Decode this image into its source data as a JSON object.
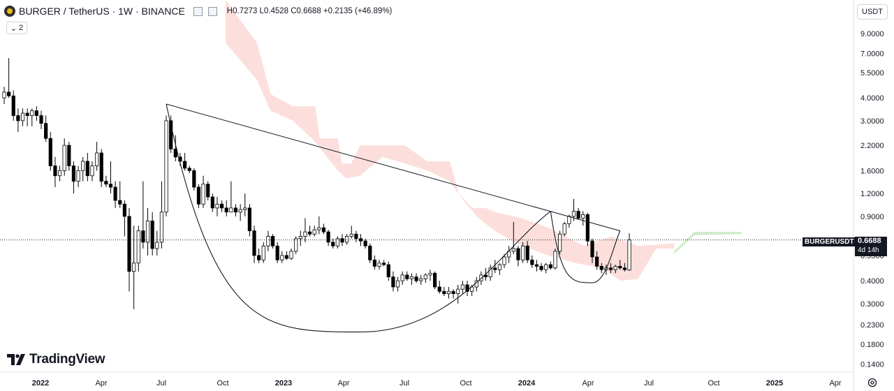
{
  "header": {
    "title": "BURGER / TetherUS · 1W · BINANCE",
    "ohlc": "H0.7273 L0.4528 C0.6688 +0.2135 (+46.89%)",
    "indicator_count": "2",
    "currency": "USDT"
  },
  "price_tag": {
    "symbol": "BURGERUSDT",
    "price": "0.6688",
    "countdown": "4d 14h"
  },
  "logo": {
    "text": "TradingView"
  },
  "colors": {
    "up": "#ffffff",
    "down": "#000000",
    "wick": "#000000",
    "cloud": "#fbd9d6",
    "cloud_future": "#c8e6c0",
    "line": "#131722"
  },
  "icons": [
    "burger-logo-icon",
    "checkbox-icon",
    "chevron-down-icon",
    "tradingview-logo-icon",
    "gear-icon"
  ],
  "chart_data": {
    "type": "candlestick",
    "x_ticks": [
      "2022",
      "Apr",
      "Jul",
      "Oct",
      "2023",
      "Apr",
      "Jul",
      "Oct",
      "2024",
      "Apr",
      "Jul",
      "Oct",
      "2025",
      "Apr"
    ],
    "y_ticks": [
      "9.0000",
      "7.0000",
      "5.5000",
      "4.0000",
      "3.0000",
      "2.2000",
      "1.6000",
      "1.2000",
      "0.9000",
      "0.5500",
      "0.4000",
      "0.3000",
      "0.2300",
      "0.1800",
      "0.1400"
    ],
    "y_scale": "log",
    "ylim": [
      0.13,
      11.5
    ],
    "current_price": 0.6688,
    "candles": [
      [
        4.0,
        4.6,
        3.7,
        4.3
      ],
      [
        4.3,
        6.6,
        4.0,
        4.1
      ],
      [
        4.1,
        4.4,
        3.0,
        3.2
      ],
      [
        3.2,
        3.5,
        2.6,
        3.0
      ],
      [
        3.0,
        3.5,
        2.8,
        3.3
      ],
      [
        3.3,
        3.5,
        2.8,
        3.2
      ],
      [
        3.2,
        3.5,
        2.8,
        3.4
      ],
      [
        3.4,
        3.6,
        3.0,
        3.2
      ],
      [
        3.2,
        3.4,
        2.7,
        2.9
      ],
      [
        2.9,
        3.2,
        2.3,
        2.4
      ],
      [
        2.4,
        2.6,
        1.6,
        1.7
      ],
      [
        1.7,
        1.9,
        1.3,
        1.5
      ],
      [
        1.5,
        1.7,
        1.4,
        1.6
      ],
      [
        1.6,
        2.4,
        1.5,
        2.2
      ],
      [
        2.2,
        2.3,
        1.6,
        1.7
      ],
      [
        1.7,
        1.8,
        1.2,
        1.4
      ],
      [
        1.4,
        1.7,
        1.3,
        1.6
      ],
      [
        1.6,
        1.9,
        1.4,
        1.8
      ],
      [
        1.8,
        2.0,
        1.4,
        1.5
      ],
      [
        1.5,
        1.8,
        1.4,
        1.7
      ],
      [
        1.7,
        2.3,
        1.6,
        2.0
      ],
      [
        2.0,
        2.1,
        1.3,
        1.4
      ],
      [
        1.4,
        1.5,
        1.3,
        1.35
      ],
      [
        1.35,
        1.8,
        1.2,
        1.3
      ],
      [
        1.3,
        1.4,
        1.0,
        1.1
      ],
      [
        1.1,
        1.4,
        1.0,
        1.05
      ],
      [
        1.05,
        1.1,
        0.7,
        0.9
      ],
      [
        0.9,
        1.0,
        0.35,
        0.45
      ],
      [
        0.45,
        0.8,
        0.28,
        0.5
      ],
      [
        0.5,
        0.8,
        0.45,
        0.75
      ],
      [
        0.75,
        1.4,
        0.6,
        0.65
      ],
      [
        0.65,
        1.0,
        0.55,
        0.85
      ],
      [
        0.85,
        0.95,
        0.55,
        0.6
      ],
      [
        0.6,
        0.75,
        0.55,
        0.65
      ],
      [
        0.65,
        1.4,
        0.6,
        0.95
      ],
      [
        0.95,
        3.2,
        0.9,
        3.0
      ],
      [
        3.0,
        3.2,
        2.0,
        2.1
      ],
      [
        2.1,
        2.5,
        1.8,
        1.9
      ],
      [
        1.9,
        2.0,
        1.7,
        1.8
      ],
      [
        1.8,
        2.0,
        1.6,
        1.65
      ],
      [
        1.65,
        1.7,
        1.55,
        1.6
      ],
      [
        1.6,
        1.65,
        1.25,
        1.3
      ],
      [
        1.3,
        1.35,
        1.0,
        1.05
      ],
      [
        1.05,
        1.5,
        1.0,
        1.35
      ],
      [
        1.35,
        1.4,
        1.1,
        1.15
      ],
      [
        1.15,
        1.2,
        0.95,
        1.0
      ],
      [
        1.0,
        1.15,
        0.9,
        1.05
      ],
      [
        1.05,
        1.1,
        0.95,
        1.0
      ],
      [
        1.0,
        1.1,
        0.9,
        0.95
      ],
      [
        0.95,
        1.4,
        0.95,
        1.0
      ],
      [
        1.0,
        1.05,
        0.9,
        0.95
      ],
      [
        0.95,
        1.05,
        0.85,
        0.98
      ],
      [
        0.98,
        1.2,
        0.9,
        1.0
      ],
      [
        1.0,
        1.05,
        0.7,
        0.75
      ],
      [
        0.75,
        0.8,
        0.5,
        0.55
      ],
      [
        0.55,
        0.6,
        0.5,
        0.52
      ],
      [
        0.52,
        0.65,
        0.5,
        0.62
      ],
      [
        0.62,
        0.75,
        0.58,
        0.7
      ],
      [
        0.7,
        0.72,
        0.6,
        0.62
      ],
      [
        0.62,
        0.65,
        0.5,
        0.52
      ],
      [
        0.52,
        0.58,
        0.5,
        0.55
      ],
      [
        0.55,
        0.58,
        0.52,
        0.53
      ],
      [
        0.53,
        0.6,
        0.52,
        0.58
      ],
      [
        0.58,
        0.7,
        0.56,
        0.68
      ],
      [
        0.68,
        0.75,
        0.62,
        0.7
      ],
      [
        0.7,
        0.88,
        0.65,
        0.74
      ],
      [
        0.74,
        0.8,
        0.7,
        0.72
      ],
      [
        0.72,
        0.8,
        0.7,
        0.76
      ],
      [
        0.76,
        0.9,
        0.72,
        0.78
      ],
      [
        0.78,
        0.82,
        0.72,
        0.74
      ],
      [
        0.74,
        0.76,
        0.62,
        0.65
      ],
      [
        0.65,
        0.68,
        0.6,
        0.62
      ],
      [
        0.62,
        0.7,
        0.6,
        0.68
      ],
      [
        0.68,
        0.72,
        0.62,
        0.65
      ],
      [
        0.65,
        0.72,
        0.63,
        0.7
      ],
      [
        0.7,
        0.8,
        0.68,
        0.72
      ],
      [
        0.72,
        0.75,
        0.65,
        0.68
      ],
      [
        0.68,
        0.72,
        0.62,
        0.66
      ],
      [
        0.66,
        0.68,
        0.6,
        0.62
      ],
      [
        0.62,
        0.64,
        0.5,
        0.52
      ],
      [
        0.52,
        0.55,
        0.46,
        0.48
      ],
      [
        0.48,
        0.52,
        0.46,
        0.5
      ],
      [
        0.5,
        0.52,
        0.48,
        0.49
      ],
      [
        0.49,
        0.51,
        0.4,
        0.42
      ],
      [
        0.42,
        0.45,
        0.35,
        0.37
      ],
      [
        0.37,
        0.42,
        0.35,
        0.4
      ],
      [
        0.4,
        0.45,
        0.38,
        0.43
      ],
      [
        0.43,
        0.45,
        0.4,
        0.41
      ],
      [
        0.41,
        0.44,
        0.38,
        0.42
      ],
      [
        0.42,
        0.44,
        0.39,
        0.4
      ],
      [
        0.4,
        0.43,
        0.38,
        0.41
      ],
      [
        0.41,
        0.44,
        0.39,
        0.43
      ],
      [
        0.43,
        0.46,
        0.4,
        0.44
      ],
      [
        0.44,
        0.45,
        0.36,
        0.37
      ],
      [
        0.37,
        0.4,
        0.34,
        0.35
      ],
      [
        0.35,
        0.37,
        0.33,
        0.34
      ],
      [
        0.34,
        0.37,
        0.32,
        0.35
      ],
      [
        0.35,
        0.36,
        0.32,
        0.34
      ],
      [
        0.34,
        0.38,
        0.3,
        0.36
      ],
      [
        0.36,
        0.4,
        0.34,
        0.38
      ],
      [
        0.38,
        0.4,
        0.33,
        0.35
      ],
      [
        0.35,
        0.38,
        0.33,
        0.37
      ],
      [
        0.37,
        0.42,
        0.35,
        0.4
      ],
      [
        0.4,
        0.45,
        0.38,
        0.43
      ],
      [
        0.43,
        0.47,
        0.4,
        0.42
      ],
      [
        0.42,
        0.49,
        0.4,
        0.47
      ],
      [
        0.47,
        0.52,
        0.44,
        0.46
      ],
      [
        0.46,
        0.5,
        0.43,
        0.49
      ],
      [
        0.49,
        0.56,
        0.47,
        0.54
      ],
      [
        0.54,
        0.62,
        0.5,
        0.58
      ],
      [
        0.58,
        0.84,
        0.56,
        0.6
      ],
      [
        0.6,
        0.62,
        0.48,
        0.52
      ],
      [
        0.52,
        0.65,
        0.5,
        0.62
      ],
      [
        0.62,
        0.66,
        0.5,
        0.52
      ],
      [
        0.52,
        0.55,
        0.47,
        0.49
      ],
      [
        0.49,
        0.52,
        0.45,
        0.48
      ],
      [
        0.48,
        0.5,
        0.45,
        0.46
      ],
      [
        0.46,
        0.5,
        0.44,
        0.49
      ],
      [
        0.49,
        0.51,
        0.46,
        0.47
      ],
      [
        0.47,
        0.6,
        0.46,
        0.58
      ],
      [
        0.58,
        0.75,
        0.56,
        0.72
      ],
      [
        0.72,
        0.84,
        0.7,
        0.82
      ],
      [
        0.82,
        0.92,
        0.78,
        0.9
      ],
      [
        0.9,
        1.12,
        0.85,
        0.96
      ],
      [
        0.96,
        1.0,
        0.86,
        0.88
      ],
      [
        0.88,
        0.96,
        0.8,
        0.92
      ],
      [
        0.92,
        0.94,
        0.62,
        0.66
      ],
      [
        0.66,
        0.68,
        0.5,
        0.54
      ],
      [
        0.54,
        0.58,
        0.46,
        0.48
      ],
      [
        0.48,
        0.5,
        0.44,
        0.46
      ],
      [
        0.46,
        0.49,
        0.43,
        0.47
      ],
      [
        0.47,
        0.5,
        0.44,
        0.46
      ],
      [
        0.46,
        0.49,
        0.44,
        0.48
      ],
      [
        0.48,
        0.52,
        0.46,
        0.47
      ],
      [
        0.47,
        0.5,
        0.45,
        0.46
      ],
      [
        0.4581,
        0.7273,
        0.4528,
        0.6688
      ]
    ],
    "cloud_edge_a": [
      {
        "x": 0.0,
        "v": 30.0
      },
      {
        "x": 0.07,
        "v": 8.0
      },
      {
        "x": 0.08,
        "v": 6.5
      },
      {
        "x": 0.1,
        "v": 4.2
      },
      {
        "x": 0.15,
        "v": 3.6
      },
      {
        "x": 0.2,
        "v": 3.6
      },
      {
        "x": 0.21,
        "v": 2.4
      },
      {
        "x": 0.25,
        "v": 2.4
      },
      {
        "x": 0.26,
        "v": 1.75
      },
      {
        "x": 0.28,
        "v": 1.75
      },
      {
        "x": 0.3,
        "v": 2.2
      },
      {
        "x": 0.4,
        "v": 2.2
      },
      {
        "x": 0.45,
        "v": 1.8
      },
      {
        "x": 0.5,
        "v": 1.8
      },
      {
        "x": 0.52,
        "v": 1.2
      },
      {
        "x": 0.55,
        "v": 1.0
      },
      {
        "x": 0.58,
        "v": 1.0
      },
      {
        "x": 0.6,
        "v": 0.95
      },
      {
        "x": 0.66,
        "v": 0.88
      },
      {
        "x": 0.72,
        "v": 0.78
      },
      {
        "x": 0.8,
        "v": 0.62
      },
      {
        "x": 0.86,
        "v": 0.7
      },
      {
        "x": 0.92,
        "v": 0.62
      },
      {
        "x": 1.0,
        "v": 0.64
      }
    ],
    "cloud_edge_b": [
      {
        "x": 0.0,
        "v": 8.0
      },
      {
        "x": 0.07,
        "v": 5.0
      },
      {
        "x": 0.1,
        "v": 3.4
      },
      {
        "x": 0.15,
        "v": 3.0
      },
      {
        "x": 0.2,
        "v": 2.3
      },
      {
        "x": 0.25,
        "v": 1.6
      },
      {
        "x": 0.27,
        "v": 1.45
      },
      {
        "x": 0.3,
        "v": 1.5
      },
      {
        "x": 0.35,
        "v": 1.9
      },
      {
        "x": 0.4,
        "v": 1.75
      },
      {
        "x": 0.45,
        "v": 1.6
      },
      {
        "x": 0.5,
        "v": 1.4
      },
      {
        "x": 0.53,
        "v": 1.1
      },
      {
        "x": 0.56,
        "v": 0.9
      },
      {
        "x": 0.6,
        "v": 0.75
      },
      {
        "x": 0.66,
        "v": 0.62
      },
      {
        "x": 0.72,
        "v": 0.55
      },
      {
        "x": 0.78,
        "v": 0.5
      },
      {
        "x": 0.84,
        "v": 0.47
      },
      {
        "x": 0.88,
        "v": 0.4
      },
      {
        "x": 0.92,
        "v": 0.41
      },
      {
        "x": 0.96,
        "v": 0.6
      },
      {
        "x": 1.0,
        "v": 0.6
      }
    ],
    "future_cloud_a": [
      {
        "x": 0,
        "v": 0.58
      },
      {
        "x": 0.3,
        "v": 0.74
      },
      {
        "x": 1.0,
        "v": 0.74
      }
    ],
    "future_cloud_b": [
      {
        "x": 0,
        "v": 0.56
      },
      {
        "x": 0.3,
        "v": 0.71
      },
      {
        "x": 1.0,
        "v": 0.72
      }
    ],
    "trendline": [
      [
        35,
        3.7
      ],
      [
        133,
        0.75
      ]
    ],
    "cup_arc": {
      "start": [
        35,
        3.7
      ],
      "bottom": [
        77,
        0.21
      ],
      "end": [
        118,
        0.96
      ]
    },
    "handle_arc": {
      "start": [
        118,
        0.96
      ],
      "bottom": [
        127,
        0.39
      ],
      "end": [
        133,
        0.75
      ]
    }
  }
}
